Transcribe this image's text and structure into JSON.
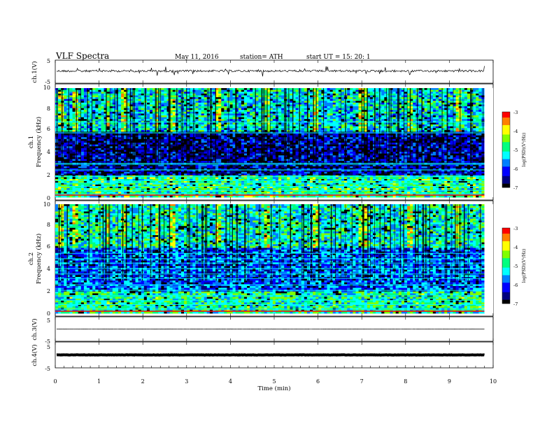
{
  "header": {
    "title": "VLF  Spectra",
    "date": "May 11, 2016",
    "station": "station= ATH",
    "start": "start  UT  =    15: 20: 1"
  },
  "colors": {
    "waveform": "#000000",
    "colormap": [
      "#000000",
      "#00007f",
      "#0000ff",
      "#007fff",
      "#00ffff",
      "#00ff7f",
      "#7fff00",
      "#ffff00",
      "#ff7f00",
      "#ff0000",
      "#ffffff"
    ]
  },
  "chart_data": [
    {
      "type": "line",
      "panel": "ch1-waveform",
      "ylabel": "ch.1(V)",
      "ylim": [
        -5,
        5
      ],
      "yticks": [
        "5",
        "-5"
      ],
      "xlim": [
        0,
        10
      ],
      "description_values": {
        "baseline_v": 0.3,
        "impulsive_spikes": true
      },
      "grid": false
    },
    {
      "type": "heatmap",
      "panel": "ch1-spectrogram",
      "ylabel": "ch.1",
      "ylabel2": "Frequency  (kHz)",
      "ylim": [
        0,
        10
      ],
      "yticks": [
        "0",
        "2",
        "4",
        "6",
        "8",
        "10"
      ],
      "xlim": [
        0,
        10
      ],
      "data_end_min": 9.8,
      "colorbar": {
        "label": "log(PSD)(V²/Hz)",
        "range": [
          -7,
          -3
        ],
        "ticks": [
          "-3",
          "-4",
          "-5",
          "-6",
          "-7"
        ]
      },
      "persistent_lines_khz": [
        0.3,
        0.6,
        1.0,
        1.3,
        1.5,
        1.9,
        2.5,
        3.0,
        3.1,
        5.9,
        6.9
      ],
      "band_levels": [
        {
          "from_khz": 0,
          "to_khz": 2,
          "log_psd": -4.8
        },
        {
          "from_khz": 2,
          "to_khz": 6,
          "log_psd": -6.4
        },
        {
          "from_khz": 6,
          "to_khz": 10,
          "log_psd": -5.2
        }
      ]
    },
    {
      "type": "heatmap",
      "panel": "ch2-spectrogram",
      "ylabel": "ch.2",
      "ylabel2": "Frequency  (kHz)",
      "ylim": [
        0,
        10
      ],
      "yticks": [
        "0",
        "2",
        "4",
        "6",
        "8",
        "10"
      ],
      "xlim": [
        0,
        10
      ],
      "data_end_min": 9.8,
      "colorbar": {
        "label": "log(PSD)(V²/Hz)",
        "range": [
          -7,
          -3
        ],
        "ticks": [
          "-3",
          "-4",
          "-5",
          "-6",
          "-7"
        ]
      },
      "persistent_lines_khz": [
        0.4,
        0.8,
        1.2,
        1.6,
        2.1,
        2.6,
        3.2,
        3.6,
        4.1,
        4.6,
        5.0,
        5.5
      ],
      "band_levels": [
        {
          "from_khz": 0,
          "to_khz": 2,
          "log_psd": -4.9
        },
        {
          "from_khz": 2,
          "to_khz": 6,
          "log_psd": -5.8
        },
        {
          "from_khz": 6,
          "to_khz": 10,
          "log_psd": -5.1
        }
      ]
    },
    {
      "type": "line",
      "panel": "ch3-waveform",
      "ylabel": "ch.3(V)",
      "ylim": [
        -5,
        5
      ],
      "yticks": [
        "5",
        "-5"
      ],
      "xlim": [
        0,
        10
      ],
      "description_values": {
        "baseline_v": 0.0
      },
      "grid": false
    },
    {
      "type": "line",
      "panel": "ch4-waveform",
      "ylabel": "ch.4(V)",
      "ylim": [
        -5,
        5
      ],
      "yticks": [
        "5",
        "-5"
      ],
      "xlim": [
        0,
        10
      ],
      "xlabel": "Time  (min)",
      "xticks": [
        "0",
        "1",
        "2",
        "3",
        "4",
        "5",
        "6",
        "7",
        "8",
        "9",
        "10"
      ],
      "description_values": {
        "baseline_v": 0.0,
        "dense_band": true
      },
      "grid": false
    }
  ]
}
